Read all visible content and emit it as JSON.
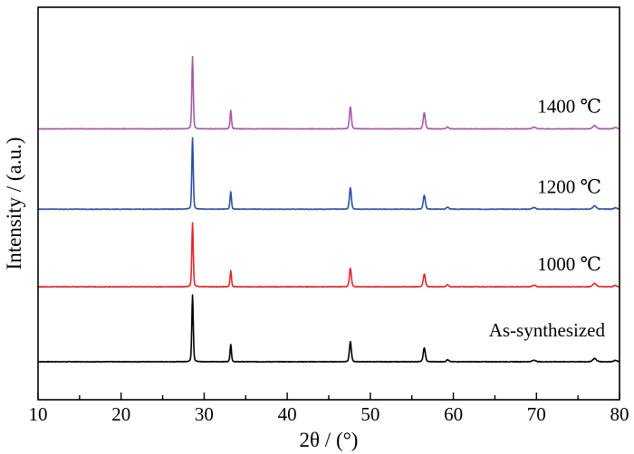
{
  "chart_data": {
    "type": "line",
    "xlabel": "2θ / (°)",
    "ylabel": "Intensity / (a.u.)",
    "xlim": [
      10,
      80
    ],
    "x_ticks": [
      10,
      20,
      30,
      40,
      50,
      60,
      70,
      80
    ],
    "y_ticks": "none",
    "grid": false,
    "legend": "inline labels at right of each trace",
    "peak_positions": [
      28.6,
      33.2,
      47.6,
      56.5,
      59.3,
      69.7,
      77.0,
      79.5
    ],
    "series": [
      {
        "name": "As-synthesized",
        "color": "#000000",
        "baseline": 0,
        "peak_heights": [
          100,
          26,
          30,
          21,
          3,
          2.5,
          5,
          2
        ]
      },
      {
        "name": "1000 ℃",
        "color": "#e3262a",
        "baseline": 112,
        "peak_heights": [
          96,
          24,
          28,
          19,
          3,
          2.5,
          5,
          2
        ]
      },
      {
        "name": "1200 ℃",
        "color": "#2b4fa0",
        "baseline": 228,
        "peak_heights": [
          107,
          26,
          32,
          21,
          3,
          2.5,
          5,
          2
        ]
      },
      {
        "name": "1400 ℃",
        "color": "#a65aa6",
        "baseline": 348,
        "peak_heights": [
          108,
          28,
          33,
          24,
          3,
          2.5,
          5,
          2
        ]
      }
    ]
  }
}
